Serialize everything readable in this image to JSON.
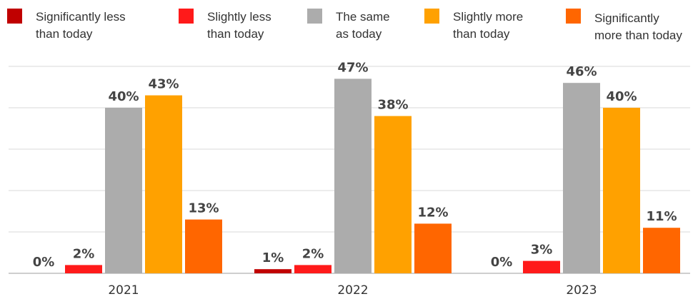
{
  "chart_data": {
    "type": "bar",
    "categories": [
      "2021",
      "2022",
      "2023"
    ],
    "series": [
      {
        "name": "Significantly less than today",
        "name_lines": [
          "Significantly less",
          "than today"
        ],
        "color": "#c00000",
        "values": [
          0,
          1,
          0
        ]
      },
      {
        "name": "Slightly less than today",
        "name_lines": [
          "Slightly less",
          "than today"
        ],
        "color": "#ff1a1a",
        "values": [
          2,
          2,
          3
        ]
      },
      {
        "name": "The same as today",
        "name_lines": [
          "The same",
          "as today"
        ],
        "color": "#acacac",
        "values": [
          40,
          47,
          46
        ]
      },
      {
        "name": "Slightly more than today",
        "name_lines": [
          "Slightly more",
          "than today"
        ],
        "color": "#ffa100",
        "values": [
          43,
          38,
          40
        ]
      },
      {
        "name": "Significantly more than today",
        "name_lines": [
          "Significantly",
          "more than today"
        ],
        "color": "#ff6600",
        "values": [
          13,
          12,
          11
        ]
      }
    ],
    "value_suffix": "%",
    "ylim": [
      0,
      50
    ],
    "grid": true,
    "legend_position": "top"
  }
}
